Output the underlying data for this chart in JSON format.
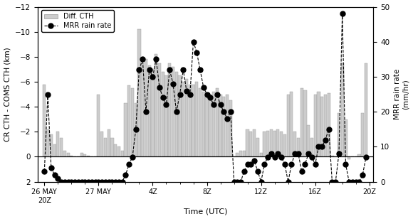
{
  "title": "",
  "xlabel": "Time (UTC)",
  "ylabel_left": "CR CTH - COMS CTH (km)",
  "ylabel_right": "MRR rain rate\n(mm/hr)",
  "ylim_left": [
    -12,
    2
  ],
  "ylim_right": [
    0,
    50
  ],
  "yticks_left": [
    -12,
    -10,
    -8,
    -6,
    -4,
    -2,
    0,
    2
  ],
  "yticks_right": [
    0,
    10,
    20,
    30,
    40,
    50
  ],
  "xtick_labels": [
    "26 MAY\n20Z",
    "27 MAY",
    "4Z",
    "8Z",
    "12Z",
    "16Z",
    "20Z"
  ],
  "xtick_positions": [
    0,
    4,
    8,
    12,
    16,
    20,
    24
  ],
  "bar_color": "#cccccc",
  "bar_edge_color": "#999999",
  "line_color": "#000000",
  "marker_color": "#000000",
  "background_color": "#ffffff",
  "legend_labels": [
    "Diff. CTH",
    "MRR rain rate"
  ],
  "bar_data_x": [
    0.0,
    0.25,
    0.5,
    0.75,
    1.0,
    1.25,
    1.5,
    1.75,
    2.0,
    2.25,
    2.5,
    2.75,
    3.0,
    3.25,
    3.5,
    3.75,
    4.0,
    4.25,
    4.5,
    4.75,
    5.0,
    5.25,
    5.5,
    5.75,
    6.0,
    6.25,
    6.5,
    6.75,
    7.0,
    7.25,
    7.5,
    7.75,
    8.0,
    8.25,
    8.5,
    8.75,
    9.0,
    9.25,
    9.5,
    9.75,
    10.0,
    10.25,
    10.5,
    10.75,
    11.0,
    11.25,
    11.5,
    11.75,
    12.0,
    12.25,
    12.5,
    12.75,
    13.0,
    13.25,
    13.5,
    13.75,
    14.0,
    14.25,
    14.5,
    14.75,
    15.0,
    15.25,
    15.5,
    15.75,
    16.0,
    16.25,
    16.5,
    16.75,
    17.0,
    17.25,
    17.5,
    17.75,
    18.0,
    18.25,
    18.5,
    18.75,
    19.0,
    19.25,
    19.5,
    19.75,
    20.0,
    20.25,
    20.5,
    20.75,
    21.0,
    21.25,
    21.5,
    21.75,
    22.0,
    22.25,
    22.5,
    22.75,
    23.0,
    23.25,
    23.5,
    23.75
  ],
  "bar_data_y": [
    -5.8,
    -2.2,
    -1.8,
    -1.0,
    -2.0,
    -1.5,
    -0.5,
    -0.3,
    -0.1,
    0.0,
    0.0,
    -0.3,
    -0.2,
    -0.1,
    0.0,
    0.0,
    -5.0,
    -2.0,
    -1.5,
    -2.2,
    -1.5,
    -1.0,
    -0.8,
    -0.5,
    -4.3,
    -5.7,
    -5.5,
    -4.3,
    -10.2,
    -7.5,
    -7.8,
    -7.3,
    -7.0,
    -8.2,
    -7.5,
    -6.8,
    -6.5,
    -7.5,
    -7.2,
    -6.8,
    -6.5,
    -6.0,
    -6.2,
    -5.8,
    -5.8,
    -6.0,
    -5.5,
    -5.2,
    -5.0,
    -5.0,
    -5.2,
    -5.5,
    -5.0,
    -4.8,
    -5.0,
    -4.5,
    0.0,
    -0.3,
    -0.5,
    -0.5,
    -2.2,
    -2.0,
    -2.2,
    -1.5,
    -0.3,
    -2.0,
    -2.1,
    -2.2,
    -2.1,
    -2.2,
    -2.0,
    -1.8,
    -5.0,
    -5.2,
    -2.0,
    -1.5,
    -5.5,
    -5.3,
    -2.5,
    -1.5,
    -5.0,
    -5.2,
    -4.8,
    -5.0,
    -5.1,
    -0.1,
    -0.05,
    -3.5,
    -7.5,
    -3.0,
    0.2,
    0.0,
    0.0,
    -0.2,
    -3.5,
    -7.5
  ],
  "mrr_x": [
    0.0,
    0.25,
    0.5,
    0.75,
    1.0,
    1.25,
    1.5,
    1.75,
    2.0,
    2.25,
    2.5,
    2.75,
    3.0,
    3.25,
    3.5,
    3.75,
    4.0,
    4.25,
    4.5,
    4.75,
    5.0,
    5.25,
    5.5,
    5.75,
    6.0,
    6.25,
    6.5,
    6.75,
    7.0,
    7.25,
    7.5,
    7.75,
    8.0,
    8.25,
    8.5,
    8.75,
    9.0,
    9.25,
    9.5,
    9.75,
    10.0,
    10.25,
    10.5,
    10.75,
    11.0,
    11.25,
    11.5,
    11.75,
    12.0,
    12.25,
    12.5,
    12.75,
    13.0,
    13.25,
    13.5,
    13.75,
    14.0,
    14.25,
    14.5,
    14.75,
    15.0,
    15.25,
    15.5,
    15.75,
    16.0,
    16.25,
    16.5,
    16.75,
    17.0,
    17.25,
    17.5,
    17.75,
    18.0,
    18.25,
    18.5,
    18.75,
    19.0,
    19.25,
    19.5,
    19.75,
    20.0,
    20.25,
    20.5,
    20.75,
    21.0,
    21.25,
    21.5,
    21.75,
    22.0,
    22.25,
    22.5,
    22.75,
    23.0,
    23.25,
    23.5,
    23.75
  ],
  "mrr_y": [
    3,
    25,
    4,
    2,
    1,
    0,
    0,
    0,
    0,
    0,
    0,
    0,
    0,
    0,
    0,
    0,
    0,
    0,
    0,
    0,
    0,
    0,
    0,
    0,
    2,
    5,
    7,
    15,
    32,
    35,
    20,
    32,
    30,
    35,
    27,
    24,
    22,
    32,
    28,
    20,
    25,
    32,
    26,
    25,
    40,
    37,
    32,
    27,
    25,
    24,
    22,
    25,
    22,
    20,
    18,
    20,
    0,
    0,
    0,
    3,
    5,
    5,
    6,
    3,
    0,
    5,
    7,
    8,
    7,
    8,
    7,
    5,
    0,
    5,
    8,
    8,
    3,
    5,
    8,
    7,
    5,
    10,
    10,
    12,
    15,
    0,
    0,
    8,
    48,
    5,
    0,
    0,
    0,
    0,
    2,
    7
  ]
}
